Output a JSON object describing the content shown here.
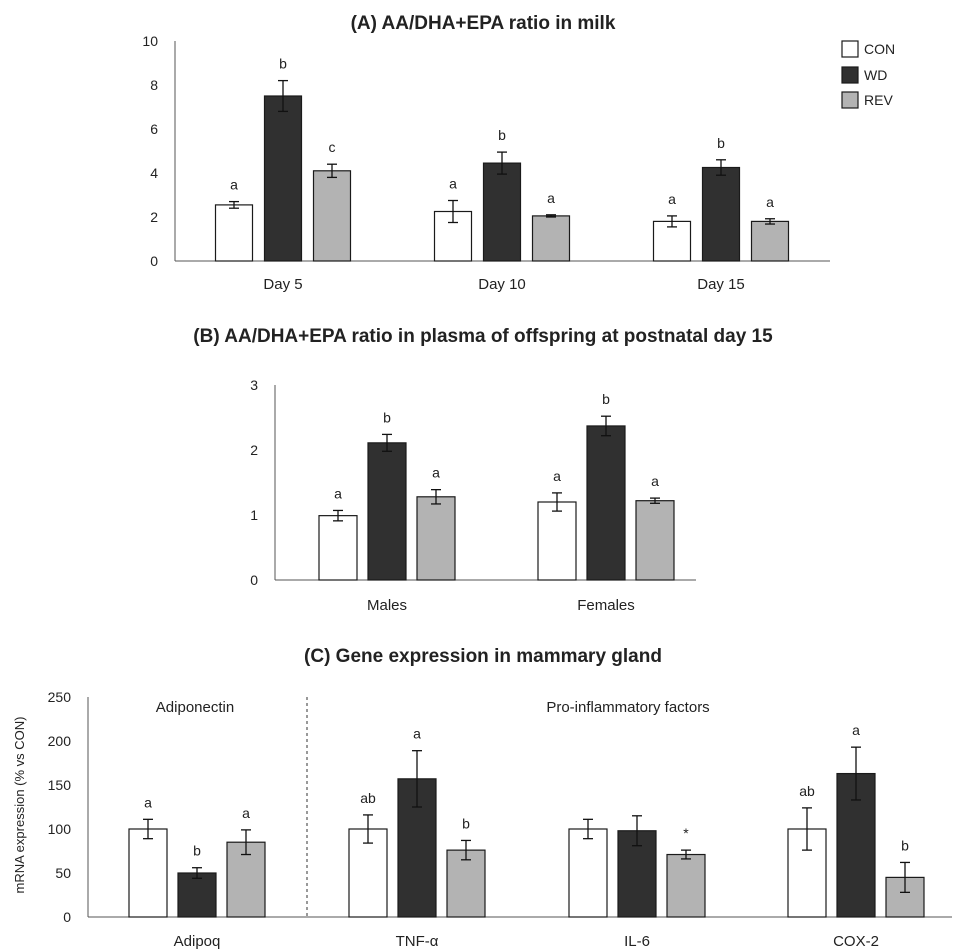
{
  "colors": {
    "CON": "#ffffff",
    "WD": "#303030",
    "REV": "#b3b3b3",
    "stroke": "#1a1a1a"
  },
  "legend": [
    {
      "key": "CON",
      "label": "CON"
    },
    {
      "key": "WD",
      "label": "WD"
    },
    {
      "key": "REV",
      "label": "REV"
    }
  ],
  "chart_data": [
    {
      "id": "A",
      "type": "bar",
      "title": "(A) AA/DHA+EPA ratio in milk",
      "xlabel": "",
      "ylabel": "",
      "ylim": [
        0,
        10
      ],
      "yticks": [
        0,
        2,
        4,
        6,
        8,
        10
      ],
      "categories": [
        "Day 5",
        "Day 10",
        "Day 15"
      ],
      "series": [
        {
          "name": "CON",
          "values": [
            2.55,
            2.25,
            1.8
          ],
          "errors": [
            0.15,
            0.5,
            0.25
          ],
          "labels": [
            "a",
            "a",
            "a"
          ]
        },
        {
          "name": "WD",
          "values": [
            7.5,
            4.45,
            4.25
          ],
          "errors": [
            0.7,
            0.5,
            0.35
          ],
          "labels": [
            "b",
            "b",
            "b"
          ]
        },
        {
          "name": "REV",
          "values": [
            4.1,
            2.05,
            1.8
          ],
          "errors": [
            0.3,
            0.05,
            0.12
          ],
          "labels": [
            "c",
            "a",
            "a"
          ]
        }
      ]
    },
    {
      "id": "B",
      "type": "bar",
      "title": "(B) AA/DHA+EPA ratio in plasma of offspring at postnatal day 15",
      "xlabel": "",
      "ylabel": "",
      "ylim": [
        0,
        3
      ],
      "yticks": [
        0,
        1,
        2,
        3
      ],
      "categories": [
        "Males",
        "Females"
      ],
      "series": [
        {
          "name": "CON",
          "values": [
            0.99,
            1.2
          ],
          "errors": [
            0.08,
            0.14
          ],
          "labels": [
            "a",
            "a"
          ]
        },
        {
          "name": "WD",
          "values": [
            2.11,
            2.37
          ],
          "errors": [
            0.13,
            0.15
          ],
          "labels": [
            "b",
            "b"
          ]
        },
        {
          "name": "REV",
          "values": [
            1.28,
            1.22
          ],
          "errors": [
            0.11,
            0.04
          ],
          "labels": [
            "a",
            "a"
          ]
        }
      ]
    },
    {
      "id": "C",
      "type": "bar",
      "title": "(C) Gene expression in mammary gland",
      "xlabel": "",
      "ylabel": "mRNA expression (% vs CON)",
      "ylim": [
        0,
        250
      ],
      "yticks": [
        0,
        50,
        100,
        150,
        200,
        250
      ],
      "categories": [
        "Adipoq",
        "TNF-α",
        "IL-6",
        "COX-2"
      ],
      "groups": [
        "Adiponectin",
        "Pro-inflammatory  factors"
      ],
      "series": [
        {
          "name": "CON",
          "values": [
            100,
            100,
            100,
            100
          ],
          "errors": [
            11,
            16,
            11,
            24
          ],
          "labels": [
            "a",
            "ab",
            "",
            "ab"
          ]
        },
        {
          "name": "WD",
          "values": [
            50,
            157,
            98,
            163
          ],
          "errors": [
            6,
            32,
            17,
            30
          ],
          "labels": [
            "b",
            "a",
            "",
            "a"
          ]
        },
        {
          "name": "REV",
          "values": [
            85,
            76,
            71,
            45
          ],
          "errors": [
            14,
            11,
            5,
            17
          ],
          "labels": [
            "a",
            "b",
            "*",
            "b"
          ]
        }
      ]
    }
  ]
}
